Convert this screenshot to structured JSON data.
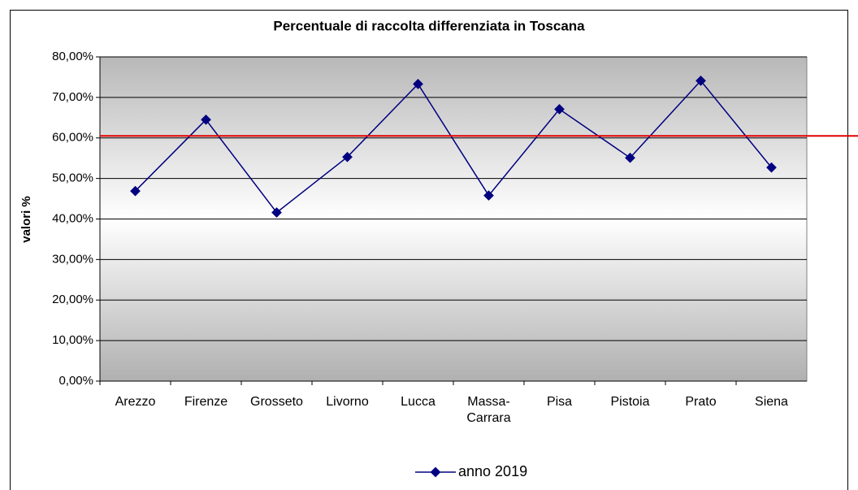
{
  "chart_data": {
    "type": "line",
    "title": "Percentuale di raccolta differenziata in Toscana",
    "y_label": "valori %",
    "categories": [
      "Arezzo",
      "Firenze",
      "Grosseto",
      "Livorno",
      "Lucca",
      "Massa-Carrara",
      "Pisa",
      "Pistoia",
      "Prato",
      "Siena"
    ],
    "series": [
      {
        "name": "anno 2019",
        "color": "#000080",
        "values": [
          46.9,
          64.5,
          41.6,
          55.3,
          73.3,
          45.8,
          67.1,
          55.1,
          74.1,
          52.7
        ]
      }
    ],
    "ylim": [
      0,
      80
    ],
    "yticks": [
      {
        "value": 0,
        "label": "0,00%"
      },
      {
        "value": 10,
        "label": "10,00%"
      },
      {
        "value": 20,
        "label": "20,00%"
      },
      {
        "value": 30,
        "label": "30,00%"
      },
      {
        "value": 40,
        "label": "40,00%"
      },
      {
        "value": 50,
        "label": "50,00%"
      },
      {
        "value": 60,
        "label": "60,00%"
      },
      {
        "value": 70,
        "label": "70,00%"
      },
      {
        "value": 80,
        "label": "80,00%"
      }
    ],
    "grid": true,
    "hline": {
      "value": 60.5,
      "color": "#e00000"
    },
    "legend": "bottom"
  }
}
